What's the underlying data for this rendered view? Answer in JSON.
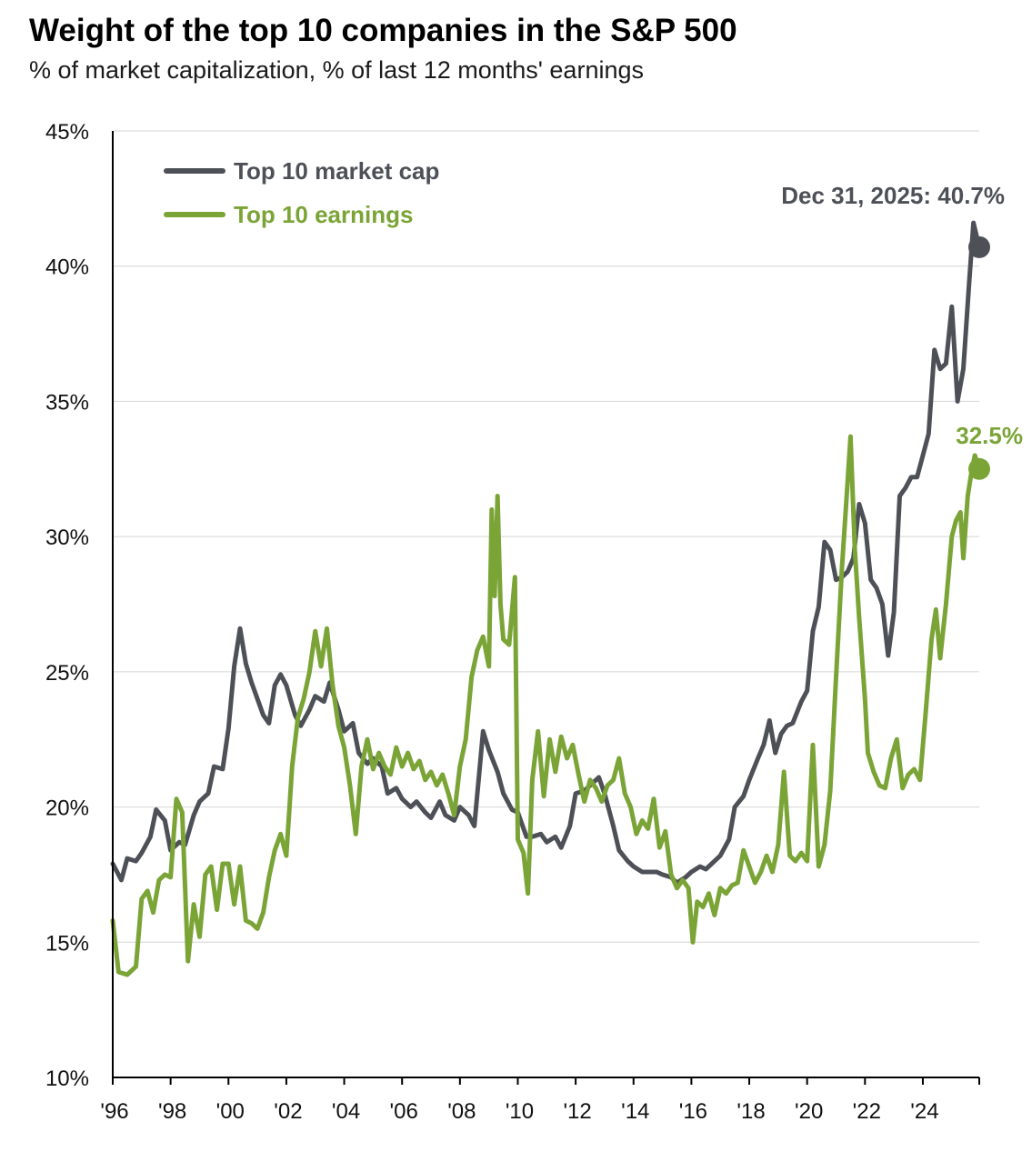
{
  "chart_data": {
    "type": "line",
    "title": "Weight of the top 10 companies in the S&P 500",
    "subtitle": "% of market capitalization, % of last 12 months' earnings",
    "xlabel": "",
    "ylabel": "",
    "ylim": [
      10,
      45
    ],
    "xlim": [
      1996,
      2025.95
    ],
    "y_ticks": [
      10,
      15,
      20,
      25,
      30,
      35,
      40,
      45
    ],
    "y_tick_labels": [
      "10%",
      "15%",
      "20%",
      "25%",
      "30%",
      "35%",
      "40%",
      "45%"
    ],
    "x_ticks": [
      1996,
      1998,
      2000,
      2002,
      2004,
      2006,
      2008,
      2010,
      2012,
      2014,
      2016,
      2018,
      2020,
      2022,
      2024
    ],
    "x_tick_labels": [
      "'96",
      "'98",
      "'00",
      "'02",
      "'04",
      "'06",
      "'08",
      "'10",
      "'12",
      "'14",
      "'16",
      "'18",
      "'20",
      "'22",
      "'24"
    ],
    "grid": true,
    "legend_position": "top-left",
    "series": [
      {
        "name": "Top 10 market cap",
        "color": "#4d5157",
        "points": [
          [
            1996.0,
            17.9
          ],
          [
            1996.3,
            17.3
          ],
          [
            1996.5,
            18.1
          ],
          [
            1996.8,
            18.0
          ],
          [
            1997.0,
            18.3
          ],
          [
            1997.3,
            18.9
          ],
          [
            1997.5,
            19.9
          ],
          [
            1997.8,
            19.5
          ],
          [
            1998.0,
            18.4
          ],
          [
            1998.3,
            18.7
          ],
          [
            1998.5,
            18.6
          ],
          [
            1998.8,
            19.7
          ],
          [
            1999.0,
            20.2
          ],
          [
            1999.3,
            20.5
          ],
          [
            1999.5,
            21.5
          ],
          [
            1999.8,
            21.4
          ],
          [
            2000.0,
            22.9
          ],
          [
            2000.2,
            25.2
          ],
          [
            2000.4,
            26.6
          ],
          [
            2000.6,
            25.3
          ],
          [
            2000.8,
            24.6
          ],
          [
            2001.0,
            24.0
          ],
          [
            2001.2,
            23.4
          ],
          [
            2001.4,
            23.1
          ],
          [
            2001.6,
            24.5
          ],
          [
            2001.8,
            24.9
          ],
          [
            2002.0,
            24.5
          ],
          [
            2002.3,
            23.4
          ],
          [
            2002.5,
            23.0
          ],
          [
            2002.8,
            23.6
          ],
          [
            2003.0,
            24.1
          ],
          [
            2003.3,
            23.9
          ],
          [
            2003.5,
            24.6
          ],
          [
            2003.8,
            23.6
          ],
          [
            2004.0,
            22.8
          ],
          [
            2004.3,
            23.1
          ],
          [
            2004.5,
            22.0
          ],
          [
            2004.8,
            21.6
          ],
          [
            2005.0,
            21.8
          ],
          [
            2005.3,
            21.5
          ],
          [
            2005.5,
            20.5
          ],
          [
            2005.8,
            20.7
          ],
          [
            2006.0,
            20.3
          ],
          [
            2006.3,
            20.0
          ],
          [
            2006.5,
            20.2
          ],
          [
            2006.8,
            19.8
          ],
          [
            2007.0,
            19.6
          ],
          [
            2007.3,
            20.2
          ],
          [
            2007.5,
            19.7
          ],
          [
            2007.8,
            19.5
          ],
          [
            2008.0,
            20.0
          ],
          [
            2008.3,
            19.7
          ],
          [
            2008.5,
            19.3
          ],
          [
            2008.8,
            22.8
          ],
          [
            2009.0,
            22.1
          ],
          [
            2009.3,
            21.3
          ],
          [
            2009.5,
            20.5
          ],
          [
            2009.8,
            19.9
          ],
          [
            2010.0,
            19.8
          ],
          [
            2010.3,
            18.9
          ],
          [
            2010.5,
            18.9
          ],
          [
            2010.8,
            19.0
          ],
          [
            2011.0,
            18.7
          ],
          [
            2011.3,
            18.9
          ],
          [
            2011.5,
            18.5
          ],
          [
            2011.8,
            19.3
          ],
          [
            2012.0,
            20.5
          ],
          [
            2012.3,
            20.6
          ],
          [
            2012.5,
            20.8
          ],
          [
            2012.8,
            21.1
          ],
          [
            2013.0,
            20.5
          ],
          [
            2013.3,
            19.3
          ],
          [
            2013.5,
            18.4
          ],
          [
            2013.8,
            18.0
          ],
          [
            2014.0,
            17.8
          ],
          [
            2014.3,
            17.6
          ],
          [
            2014.5,
            17.6
          ],
          [
            2014.8,
            17.6
          ],
          [
            2015.0,
            17.5
          ],
          [
            2015.3,
            17.4
          ],
          [
            2015.5,
            17.2
          ],
          [
            2015.8,
            17.4
          ],
          [
            2016.0,
            17.6
          ],
          [
            2016.3,
            17.8
          ],
          [
            2016.5,
            17.7
          ],
          [
            2016.8,
            18.0
          ],
          [
            2017.0,
            18.2
          ],
          [
            2017.3,
            18.8
          ],
          [
            2017.5,
            20.0
          ],
          [
            2017.8,
            20.4
          ],
          [
            2018.0,
            21.0
          ],
          [
            2018.3,
            21.8
          ],
          [
            2018.5,
            22.3
          ],
          [
            2018.7,
            23.2
          ],
          [
            2018.9,
            22.0
          ],
          [
            2019.1,
            22.7
          ],
          [
            2019.3,
            23.0
          ],
          [
            2019.5,
            23.1
          ],
          [
            2019.8,
            23.9
          ],
          [
            2020.0,
            24.3
          ],
          [
            2020.2,
            26.5
          ],
          [
            2020.4,
            27.4
          ],
          [
            2020.6,
            29.8
          ],
          [
            2020.8,
            29.5
          ],
          [
            2021.0,
            28.4
          ],
          [
            2021.2,
            28.5
          ],
          [
            2021.4,
            28.7
          ],
          [
            2021.6,
            29.2
          ],
          [
            2021.8,
            31.2
          ],
          [
            2022.0,
            30.5
          ],
          [
            2022.2,
            28.4
          ],
          [
            2022.4,
            28.1
          ],
          [
            2022.6,
            27.5
          ],
          [
            2022.8,
            25.6
          ],
          [
            2023.0,
            27.2
          ],
          [
            2023.2,
            31.5
          ],
          [
            2023.4,
            31.8
          ],
          [
            2023.6,
            32.2
          ],
          [
            2023.8,
            32.2
          ],
          [
            2024.0,
            33.0
          ],
          [
            2024.2,
            33.8
          ],
          [
            2024.4,
            36.9
          ],
          [
            2024.6,
            36.2
          ],
          [
            2024.8,
            36.4
          ],
          [
            2025.0,
            38.5
          ],
          [
            2025.2,
            35.0
          ],
          [
            2025.4,
            36.2
          ],
          [
            2025.6,
            39.4
          ],
          [
            2025.75,
            41.6
          ],
          [
            2025.95,
            40.7
          ]
        ]
      },
      {
        "name": "Top 10 earnings",
        "color": "#7ba437",
        "points": [
          [
            1996.0,
            15.8
          ],
          [
            1996.2,
            13.9
          ],
          [
            1996.5,
            13.8
          ],
          [
            1996.8,
            14.1
          ],
          [
            1997.0,
            16.6
          ],
          [
            1997.2,
            16.9
          ],
          [
            1997.4,
            16.1
          ],
          [
            1997.6,
            17.3
          ],
          [
            1997.8,
            17.5
          ],
          [
            1998.0,
            17.4
          ],
          [
            1998.2,
            20.3
          ],
          [
            1998.4,
            19.8
          ],
          [
            1998.6,
            14.3
          ],
          [
            1998.8,
            16.4
          ],
          [
            1999.0,
            15.2
          ],
          [
            1999.2,
            17.5
          ],
          [
            1999.4,
            17.8
          ],
          [
            1999.6,
            16.2
          ],
          [
            1999.8,
            17.9
          ],
          [
            2000.0,
            17.9
          ],
          [
            2000.2,
            16.4
          ],
          [
            2000.4,
            17.8
          ],
          [
            2000.6,
            15.8
          ],
          [
            2000.8,
            15.7
          ],
          [
            2001.0,
            15.5
          ],
          [
            2001.2,
            16.1
          ],
          [
            2001.4,
            17.4
          ],
          [
            2001.6,
            18.4
          ],
          [
            2001.8,
            19.0
          ],
          [
            2002.0,
            18.2
          ],
          [
            2002.2,
            21.5
          ],
          [
            2002.4,
            23.3
          ],
          [
            2002.6,
            24.0
          ],
          [
            2002.8,
            25.0
          ],
          [
            2003.0,
            26.5
          ],
          [
            2003.2,
            25.2
          ],
          [
            2003.4,
            26.6
          ],
          [
            2003.6,
            24.5
          ],
          [
            2003.8,
            23.0
          ],
          [
            2004.0,
            22.2
          ],
          [
            2004.2,
            20.8
          ],
          [
            2004.4,
            19.0
          ],
          [
            2004.6,
            21.5
          ],
          [
            2004.8,
            22.5
          ],
          [
            2005.0,
            21.4
          ],
          [
            2005.2,
            22.0
          ],
          [
            2005.4,
            21.5
          ],
          [
            2005.6,
            21.2
          ],
          [
            2005.8,
            22.2
          ],
          [
            2006.0,
            21.5
          ],
          [
            2006.2,
            22.0
          ],
          [
            2006.4,
            21.4
          ],
          [
            2006.6,
            21.7
          ],
          [
            2006.8,
            21.0
          ],
          [
            2007.0,
            21.3
          ],
          [
            2007.2,
            20.8
          ],
          [
            2007.4,
            21.2
          ],
          [
            2007.6,
            20.5
          ],
          [
            2007.8,
            19.7
          ],
          [
            2008.0,
            21.5
          ],
          [
            2008.2,
            22.5
          ],
          [
            2008.4,
            24.8
          ],
          [
            2008.6,
            25.8
          ],
          [
            2008.8,
            26.3
          ],
          [
            2009.0,
            25.2
          ],
          [
            2009.1,
            31.0
          ],
          [
            2009.2,
            27.8
          ],
          [
            2009.3,
            31.5
          ],
          [
            2009.4,
            27.5
          ],
          [
            2009.5,
            26.2
          ],
          [
            2009.7,
            26.0
          ],
          [
            2009.9,
            28.5
          ],
          [
            2010.0,
            18.8
          ],
          [
            2010.2,
            18.3
          ],
          [
            2010.35,
            16.8
          ],
          [
            2010.5,
            21.0
          ],
          [
            2010.7,
            22.8
          ],
          [
            2010.9,
            20.4
          ],
          [
            2011.1,
            22.5
          ],
          [
            2011.3,
            21.3
          ],
          [
            2011.5,
            22.6
          ],
          [
            2011.7,
            21.8
          ],
          [
            2011.9,
            22.3
          ],
          [
            2012.1,
            21.2
          ],
          [
            2012.3,
            20.2
          ],
          [
            2012.5,
            21.0
          ],
          [
            2012.7,
            20.7
          ],
          [
            2012.9,
            20.2
          ],
          [
            2013.1,
            20.8
          ],
          [
            2013.3,
            21.0
          ],
          [
            2013.5,
            21.8
          ],
          [
            2013.7,
            20.5
          ],
          [
            2013.9,
            20.0
          ],
          [
            2014.1,
            19.0
          ],
          [
            2014.3,
            19.5
          ],
          [
            2014.5,
            19.2
          ],
          [
            2014.7,
            20.3
          ],
          [
            2014.9,
            18.5
          ],
          [
            2015.1,
            19.1
          ],
          [
            2015.3,
            17.5
          ],
          [
            2015.5,
            17.0
          ],
          [
            2015.7,
            17.3
          ],
          [
            2015.9,
            17.0
          ],
          [
            2016.05,
            15.0
          ],
          [
            2016.2,
            16.5
          ],
          [
            2016.4,
            16.3
          ],
          [
            2016.6,
            16.8
          ],
          [
            2016.8,
            16.0
          ],
          [
            2017.0,
            17.0
          ],
          [
            2017.2,
            16.8
          ],
          [
            2017.4,
            17.1
          ],
          [
            2017.6,
            17.2
          ],
          [
            2017.8,
            18.4
          ],
          [
            2018.0,
            17.8
          ],
          [
            2018.2,
            17.2
          ],
          [
            2018.4,
            17.6
          ],
          [
            2018.6,
            18.2
          ],
          [
            2018.8,
            17.6
          ],
          [
            2019.0,
            18.6
          ],
          [
            2019.2,
            21.3
          ],
          [
            2019.4,
            18.2
          ],
          [
            2019.6,
            18.0
          ],
          [
            2019.8,
            18.3
          ],
          [
            2020.0,
            18.0
          ],
          [
            2020.2,
            22.3
          ],
          [
            2020.4,
            17.8
          ],
          [
            2020.6,
            18.6
          ],
          [
            2020.8,
            20.6
          ],
          [
            2021.0,
            24.8
          ],
          [
            2021.2,
            28.8
          ],
          [
            2021.35,
            31.2
          ],
          [
            2021.5,
            33.7
          ],
          [
            2021.65,
            29.5
          ],
          [
            2021.8,
            27.0
          ],
          [
            2022.0,
            24.0
          ],
          [
            2022.1,
            22.0
          ],
          [
            2022.3,
            21.3
          ],
          [
            2022.5,
            20.8
          ],
          [
            2022.7,
            20.7
          ],
          [
            2022.9,
            21.8
          ],
          [
            2023.1,
            22.5
          ],
          [
            2023.3,
            20.7
          ],
          [
            2023.5,
            21.2
          ],
          [
            2023.7,
            21.4
          ],
          [
            2023.9,
            21.0
          ],
          [
            2024.1,
            23.5
          ],
          [
            2024.3,
            26.2
          ],
          [
            2024.45,
            27.3
          ],
          [
            2024.6,
            25.5
          ],
          [
            2024.8,
            27.5
          ],
          [
            2025.0,
            30.0
          ],
          [
            2025.15,
            30.6
          ],
          [
            2025.3,
            30.9
          ],
          [
            2025.4,
            29.2
          ],
          [
            2025.55,
            31.5
          ],
          [
            2025.7,
            32.5
          ],
          [
            2025.8,
            33.0
          ],
          [
            2025.95,
            32.5
          ]
        ]
      }
    ],
    "annotations": [
      {
        "label": "Dec 31, 2025: 40.7%",
        "series": "Top 10 market cap",
        "x": 2025.95,
        "y": 40.7,
        "color": "#4d5157"
      },
      {
        "label": "32.5%",
        "series": "Top 10 earnings",
        "x": 2025.95,
        "y": 32.5,
        "color": "#7ba437"
      }
    ]
  }
}
